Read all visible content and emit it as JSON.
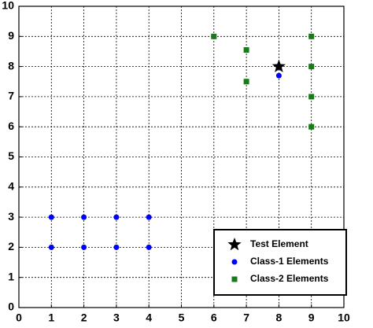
{
  "chart_data": {
    "type": "scatter",
    "xlim": [
      0,
      10
    ],
    "ylim": [
      0,
      10
    ],
    "xticks": [
      0,
      1,
      2,
      3,
      4,
      5,
      6,
      7,
      8,
      9,
      10
    ],
    "yticks": [
      0,
      1,
      2,
      3,
      4,
      5,
      6,
      7,
      8,
      9,
      10
    ],
    "grid": true,
    "legend_position": "lower right",
    "series": [
      {
        "name": "Test Element",
        "color": "#000000",
        "marker": "star",
        "x": [
          8
        ],
        "values": [
          8
        ]
      },
      {
        "name": "Class-1 Elements",
        "color": "#0000ff",
        "marker": "circle",
        "x": [
          1,
          1,
          2,
          2,
          3,
          3,
          4,
          4,
          8
        ],
        "values": [
          2,
          3,
          2,
          3,
          2,
          3,
          2,
          3,
          7.7
        ]
      },
      {
        "name": "Class-2 Elements",
        "color": "#1a7a1a",
        "marker": "square",
        "x": [
          6,
          7,
          7,
          9,
          9,
          9,
          9
        ],
        "values": [
          9,
          8.55,
          7.5,
          9,
          8,
          7,
          6
        ]
      }
    ]
  }
}
